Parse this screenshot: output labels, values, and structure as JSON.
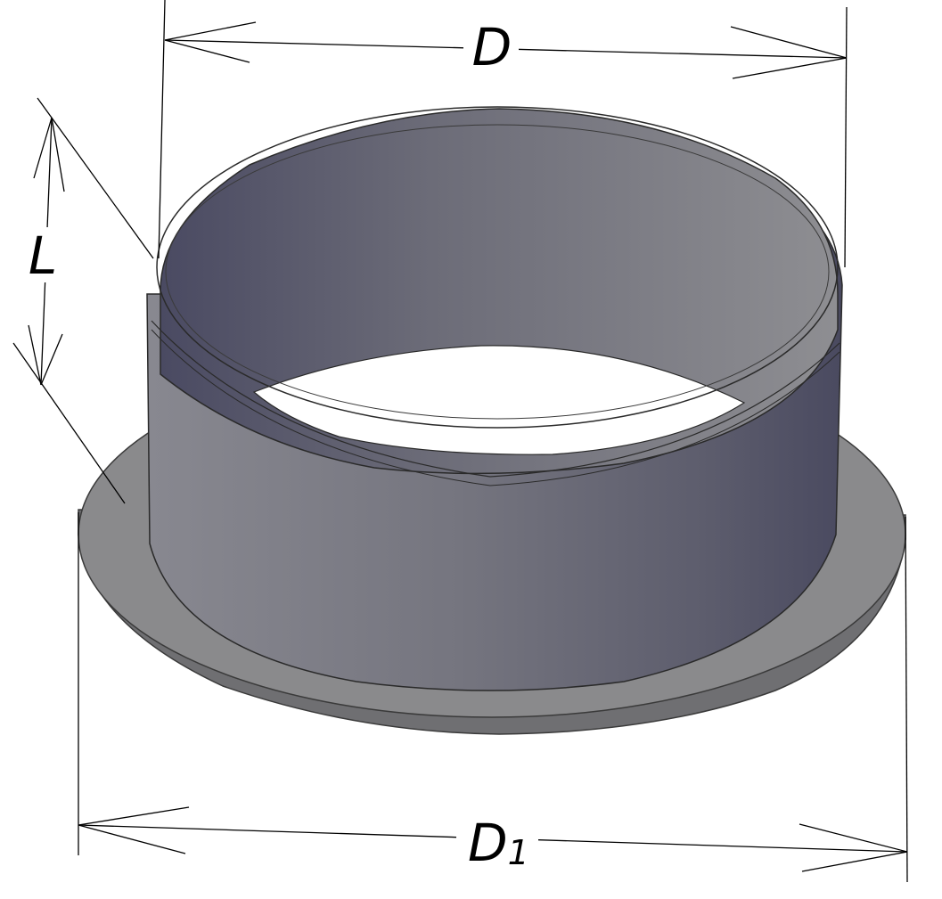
{
  "diagram": {
    "labels": {
      "diameter": "D",
      "length": "L",
      "flange_diameter": "D",
      "flange_diameter_subscript": "1"
    },
    "colors": {
      "background": "#ffffff",
      "line": "#000000",
      "body_dark": "#4a4a60",
      "body_mid": "#6e6e7a",
      "body_light": "#8c8c92",
      "flange": "#8a8a8c",
      "flange_edge": "#6f6f72"
    }
  }
}
